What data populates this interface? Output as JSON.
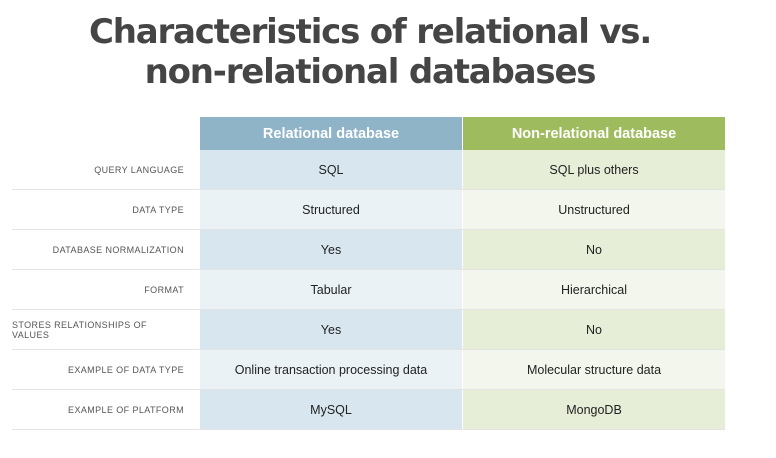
{
  "title": {
    "line1": "Characteristics of relational vs.",
    "line2": "non-relational databases"
  },
  "table": {
    "headers": {
      "relational": "Relational database",
      "nonrelational": "Non-relational database"
    },
    "rows": [
      {
        "label": "QUERY LANGUAGE",
        "relational": "SQL",
        "nonrelational": "SQL plus others"
      },
      {
        "label": "DATA TYPE",
        "relational": "Structured",
        "nonrelational": "Unstructured"
      },
      {
        "label": "DATABASE NORMALIZATION",
        "relational": "Yes",
        "nonrelational": "No"
      },
      {
        "label": "FORMAT",
        "relational": "Tabular",
        "nonrelational": "Hierarchical"
      },
      {
        "label": "STORES RELATIONSHIPS OF VALUES",
        "relational": "Yes",
        "nonrelational": "No"
      },
      {
        "label": "EXAMPLE OF DATA TYPE",
        "relational": "Online transaction processing data",
        "nonrelational": "Molecular structure data"
      },
      {
        "label": "EXAMPLE OF PLATFORM",
        "relational": "MySQL",
        "nonrelational": "MongoDB"
      }
    ]
  },
  "colors": {
    "relational_header": "#8fb4c8",
    "nonrelational_header": "#9ebb5e",
    "title": "#454545"
  }
}
